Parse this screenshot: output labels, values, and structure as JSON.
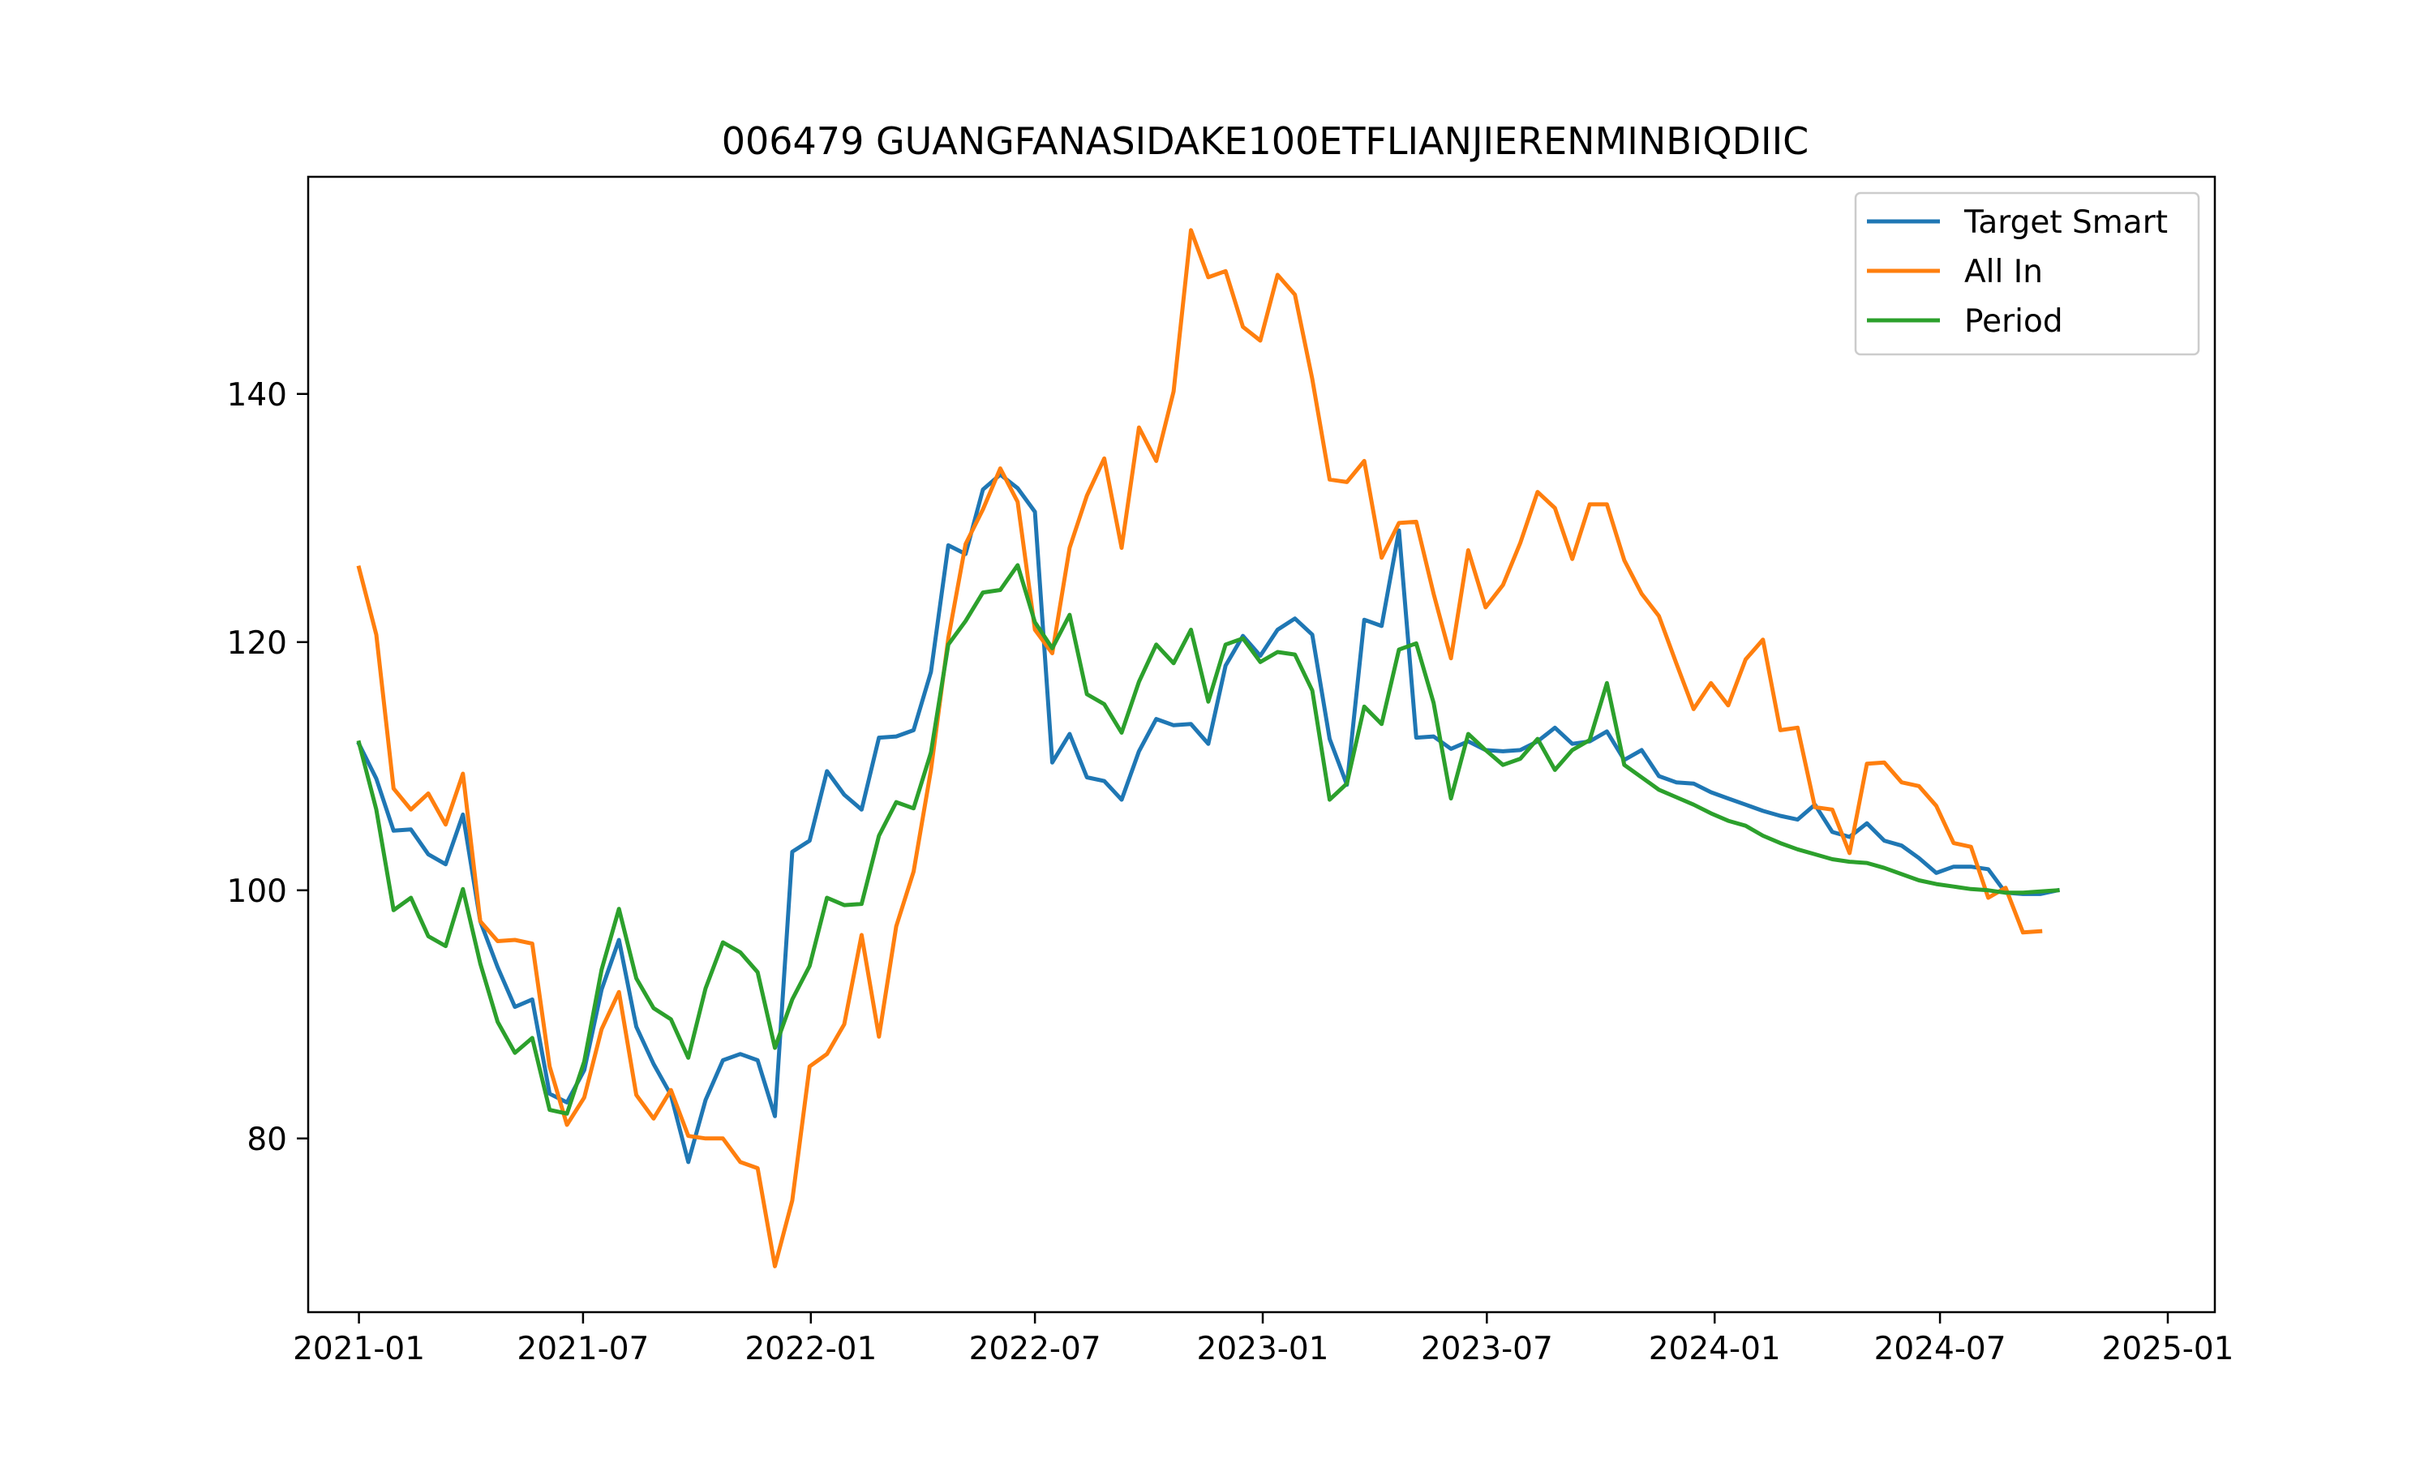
{
  "chart_data": {
    "type": "line",
    "title": "006479 GUANGFANASIDAKE100ETFLIANJIERENMINBIQDIIC",
    "xlabel": "",
    "ylabel": "",
    "x_ticks": [
      "2021-01",
      "2021-07",
      "2022-01",
      "2022-07",
      "2023-01",
      "2023-07",
      "2024-01",
      "2024-07",
      "2025-01"
    ],
    "y_ticks": [
      80,
      100,
      120,
      140
    ],
    "xlim": [
      "2020-11-21",
      "2025-02-08"
    ],
    "ylim": [
      66.0,
      157.5
    ],
    "grid": false,
    "legend_position": "top-right",
    "x_start": "2021-01-01",
    "x_step_days": 14,
    "series": [
      {
        "name": "Target Smart",
        "color": "#1f77b4",
        "values": [
          111.8,
          109.0,
          104.8,
          104.9,
          102.9,
          102.1,
          106.1,
          97.5,
          93.8,
          90.6,
          91.2,
          83.6,
          82.9,
          85.5,
          92.0,
          96.0,
          89.0,
          86.0,
          83.5,
          78.1,
          83.1,
          86.3,
          86.8,
          86.3,
          81.8,
          103.1,
          104.0,
          109.6,
          107.7,
          106.5,
          112.3,
          112.4,
          112.9,
          117.6,
          127.8,
          127.1,
          132.3,
          133.5,
          132.4,
          130.5,
          110.3,
          112.6,
          109.1,
          108.8,
          107.3,
          111.2,
          113.8,
          113.3,
          113.4,
          111.8,
          118.1,
          120.5,
          118.9,
          121.0,
          121.9,
          120.6,
          112.2,
          108.5,
          121.8,
          121.3,
          129.0,
          112.3,
          112.4,
          111.4,
          112.0,
          111.3,
          111.2,
          111.3,
          112.0,
          113.1,
          111.8,
          112.0,
          112.8,
          110.5,
          111.3,
          109.2,
          108.7,
          108.6,
          107.9,
          107.4,
          106.9,
          106.4,
          106.0,
          105.7,
          106.9,
          104.7,
          104.3,
          105.4,
          104.0,
          103.6,
          102.6,
          101.4,
          101.9,
          101.9,
          101.7,
          99.8,
          99.7,
          99.7,
          100.0
        ]
      },
      {
        "name": "All In",
        "color": "#ff7f0e",
        "values": [
          126.0,
          120.6,
          108.2,
          106.5,
          107.8,
          105.3,
          109.4,
          97.5,
          95.9,
          96.0,
          95.7,
          85.8,
          81.1,
          83.3,
          88.8,
          91.8,
          83.5,
          81.6,
          83.9,
          80.2,
          80.0,
          80.0,
          78.1,
          77.6,
          69.7,
          75.0,
          85.8,
          86.8,
          89.2,
          96.4,
          88.2,
          97.1,
          101.5,
          109.7,
          120.3,
          127.9,
          130.7,
          134.0,
          131.3,
          121.0,
          119.1,
          127.6,
          131.8,
          134.8,
          127.6,
          137.3,
          134.6,
          140.2,
          153.2,
          149.4,
          149.9,
          145.4,
          144.3,
          149.6,
          148.0,
          141.2,
          133.1,
          132.9,
          134.6,
          126.8,
          129.6,
          129.7,
          123.9,
          118.7,
          127.4,
          122.8,
          124.6,
          128.0,
          132.1,
          130.8,
          126.7,
          131.1,
          131.1,
          126.6,
          123.9,
          122.1,
          118.3,
          114.6,
          116.7,
          114.9,
          118.6,
          120.2,
          112.9,
          113.1,
          106.7,
          106.5,
          103.0,
          110.2,
          110.3,
          108.7,
          108.4,
          106.8,
          103.8,
          103.5,
          99.4,
          100.2,
          96.6,
          96.7
        ]
      },
      {
        "name": "Period",
        "color": "#2ca02c",
        "values": [
          111.9,
          106.5,
          98.4,
          99.4,
          96.3,
          95.5,
          100.1,
          94.1,
          89.4,
          86.9,
          88.1,
          82.3,
          82.0,
          86.2,
          93.6,
          98.5,
          92.9,
          90.5,
          89.6,
          86.5,
          92.1,
          95.8,
          95.0,
          93.4,
          87.3,
          91.2,
          93.9,
          99.4,
          98.8,
          98.9,
          104.4,
          107.1,
          106.6,
          111.1,
          119.8,
          121.7,
          124.0,
          124.2,
          126.2,
          121.6,
          119.5,
          122.2,
          115.8,
          115.0,
          112.7,
          116.8,
          119.8,
          118.3,
          121.0,
          115.2,
          119.8,
          120.3,
          118.4,
          119.2,
          119.0,
          116.1,
          107.3,
          108.6,
          114.8,
          113.4,
          119.4,
          119.9,
          115.1,
          107.4,
          112.6,
          111.3,
          110.1,
          110.6,
          112.2,
          109.7,
          111.3,
          112.1,
          116.7,
          110.1,
          109.1,
          108.1,
          107.5,
          106.9,
          106.2,
          105.6,
          105.2,
          104.4,
          103.8,
          103.3,
          102.9,
          102.5,
          102.3,
          102.2,
          101.8,
          101.3,
          100.8,
          100.5,
          100.3,
          100.1,
          100.0,
          99.8,
          99.8,
          99.9,
          100.0
        ]
      }
    ]
  }
}
